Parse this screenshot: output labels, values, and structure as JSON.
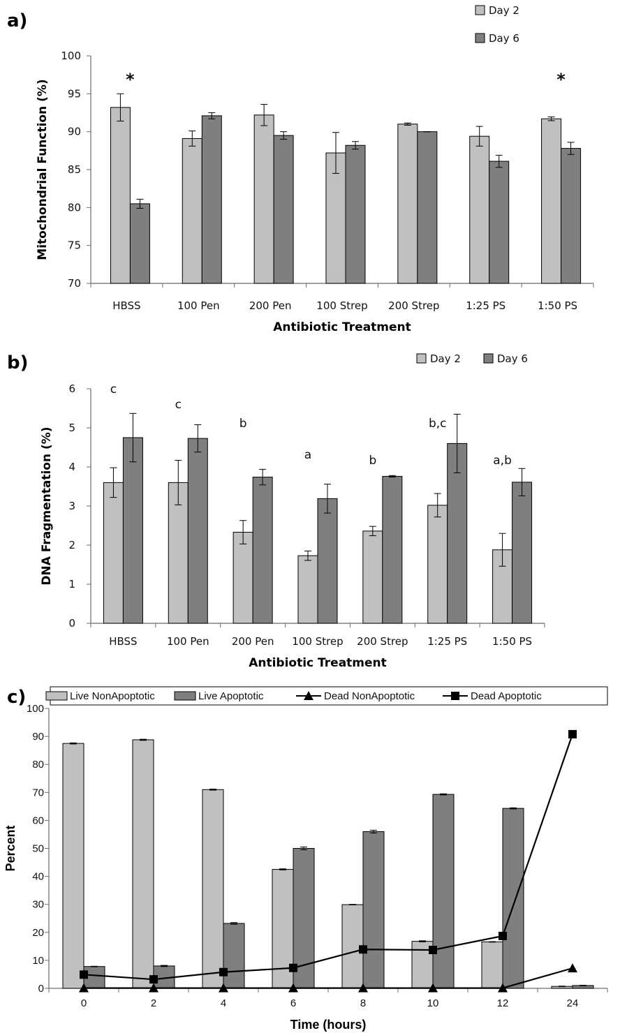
{
  "colors": {
    "light": "#c0c0c0",
    "dark": "#7f7f7f",
    "axis": "#6b6b6b",
    "line": "#000000"
  },
  "chart_data": [
    {
      "panel": "a)",
      "type": "bar",
      "categories": [
        "HBSS",
        "100 Pen",
        "200 Pen",
        "100 Strep",
        "200 Strep",
        "1:25 PS",
        "1:50 PS"
      ],
      "series": [
        {
          "name": "Day 2",
          "values": [
            93.2,
            89.1,
            92.2,
            87.2,
            91.0,
            89.4,
            91.7
          ],
          "errors": [
            1.8,
            1.0,
            1.4,
            2.7,
            0.15,
            1.3,
            0.25
          ]
        },
        {
          "name": "Day 6",
          "values": [
            80.5,
            92.1,
            89.5,
            88.2,
            90.0,
            86.1,
            87.8
          ],
          "errors": [
            0.6,
            0.4,
            0.5,
            0.5,
            0.0,
            0.8,
            0.8
          ]
        }
      ],
      "annotations": [
        {
          "category": "HBSS",
          "text": "*"
        },
        {
          "category": "1:50 PS",
          "text": "*"
        }
      ],
      "ylabel": "Mitochondrial Function (%)",
      "xlabel": "Antibiotic Treatment",
      "ylim": [
        70,
        100
      ],
      "yticks": [
        "70",
        "75",
        "80",
        "85",
        "90",
        "95",
        "100"
      ],
      "legend": "top-right, stacked"
    },
    {
      "panel": "b)",
      "type": "bar",
      "categories": [
        "HBSS",
        "100 Pen",
        "200 Pen",
        "100 Strep",
        "200 Strep",
        "1:25 PS",
        "1:50 PS"
      ],
      "series": [
        {
          "name": "Day 2",
          "values": [
            3.6,
            3.6,
            2.33,
            1.73,
            2.36,
            3.02,
            1.88
          ],
          "errors": [
            0.38,
            0.57,
            0.3,
            0.12,
            0.12,
            0.3,
            0.42
          ]
        },
        {
          "name": "Day 6",
          "values": [
            4.75,
            4.73,
            3.74,
            3.19,
            3.76,
            4.6,
            3.61
          ],
          "errors": [
            0.62,
            0.35,
            0.2,
            0.37,
            0.02,
            0.75,
            0.35
          ]
        }
      ],
      "annotations": [
        {
          "category": "HBSS",
          "text": "c"
        },
        {
          "category": "100 Pen",
          "text": "c"
        },
        {
          "category": "200 Pen",
          "text": "b"
        },
        {
          "category": "100 Strep",
          "text": "a"
        },
        {
          "category": "200 Strep",
          "text": "b"
        },
        {
          "category": "1:25 PS",
          "text": "b,c"
        },
        {
          "category": "1:50 PS",
          "text": "a,b"
        }
      ],
      "ylabel": "DNA Fragmentation (%)",
      "xlabel": "Antibiotic Treatment",
      "ylim": [
        0,
        6
      ],
      "yticks": [
        "0",
        "1",
        "2",
        "3",
        "4",
        "5",
        "6"
      ],
      "legend": "top-right, horizontal"
    },
    {
      "panel": "c)",
      "type": "bar",
      "categories": [
        "0",
        "2",
        "4",
        "6",
        "8",
        "10",
        "12",
        "24"
      ],
      "series": [
        {
          "name": "Live NonApoptotic",
          "kind": "bar",
          "values": [
            87.5,
            88.8,
            71.0,
            42.5,
            29.9,
            16.8,
            16.6,
            0.7
          ],
          "errors": [
            0.2,
            0.2,
            0.2,
            0.2,
            0.1,
            0.2,
            0.1,
            0.1
          ]
        },
        {
          "name": "Live Apoptotic",
          "kind": "bar",
          "values": [
            7.8,
            8.0,
            23.2,
            50.0,
            56.0,
            69.3,
            64.3,
            1.0
          ],
          "errors": [
            0.1,
            0.2,
            0.3,
            0.5,
            0.5,
            0.2,
            0.2,
            0.1
          ]
        },
        {
          "name": "Dead NonApoptotic",
          "kind": "line",
          "marker": "triangle",
          "values": [
            0.1,
            0.1,
            0.1,
            0.1,
            0.1,
            0.1,
            0.1,
            7.2
          ]
        },
        {
          "name": "Dead Apoptotic",
          "kind": "line",
          "marker": "square",
          "values": [
            4.9,
            3.2,
            5.8,
            7.3,
            13.9,
            13.7,
            18.7,
            90.8
          ]
        }
      ],
      "ylabel": "Percent",
      "xlabel": "Time (hours)",
      "ylim": [
        0,
        100
      ],
      "yticks": [
        "0",
        "10",
        "20",
        "30",
        "40",
        "50",
        "60",
        "70",
        "80",
        "90",
        "100"
      ],
      "legend": "top, boxed, horizontal"
    }
  ]
}
